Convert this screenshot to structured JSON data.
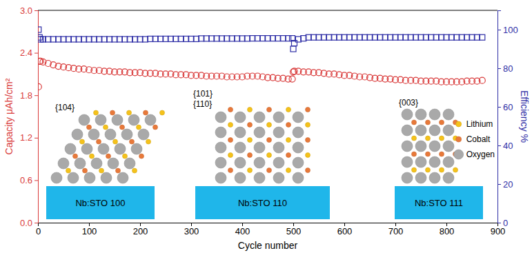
{
  "chart_data": {
    "type": "scatter",
    "xlabel": "Cycle number",
    "ylabel": "Capacity μAh/cm²",
    "y2label": "Efficiency %",
    "xlim": [
      0,
      900
    ],
    "xticks": [
      0,
      100,
      200,
      300,
      400,
      500,
      600,
      700,
      800,
      900
    ],
    "ylim": [
      0,
      3
    ],
    "yticks": [
      {
        "value": 0,
        "label": "0.0"
      },
      0.6,
      1.2,
      1.8,
      2.4,
      {
        "value": 3,
        "label": "3.0"
      }
    ],
    "y2lim": [
      0,
      110
    ],
    "y2ticks": [
      0,
      20,
      40,
      60,
      80,
      100
    ],
    "grid": false,
    "x": [
      1,
      3,
      5,
      10,
      20,
      30,
      40,
      50,
      60,
      70,
      80,
      90,
      100,
      110,
      120,
      130,
      140,
      150,
      160,
      170,
      180,
      190,
      200,
      210,
      220,
      230,
      240,
      250,
      260,
      270,
      280,
      290,
      300,
      310,
      320,
      330,
      340,
      350,
      360,
      370,
      380,
      390,
      400,
      410,
      420,
      430,
      440,
      450,
      460,
      470,
      480,
      490,
      498,
      500,
      502,
      510,
      520,
      530,
      540,
      550,
      560,
      570,
      580,
      590,
      600,
      610,
      620,
      630,
      640,
      650,
      660,
      670,
      680,
      690,
      700,
      710,
      720,
      730,
      740,
      750,
      760,
      770,
      780,
      790,
      800,
      810,
      820,
      830,
      840,
      850,
      860,
      870
    ],
    "series": [
      {
        "color": "#d93a3a",
        "marker": "circle",
        "axis": "y",
        "values": [
          1.92,
          2.28,
          2.28,
          2.27,
          2.25,
          2.23,
          2.21,
          2.2,
          2.19,
          2.18,
          2.17,
          2.17,
          2.16,
          2.15,
          2.15,
          2.14,
          2.14,
          2.13,
          2.13,
          2.13,
          2.12,
          2.12,
          2.12,
          2.11,
          2.11,
          2.11,
          2.1,
          2.1,
          2.1,
          2.09,
          2.09,
          2.09,
          2.08,
          2.08,
          2.08,
          2.07,
          2.07,
          2.07,
          2.07,
          2.06,
          2.06,
          2.06,
          2.06,
          2.07,
          2.07,
          2.07,
          2.06,
          2.05,
          2.05,
          2.04,
          2.04,
          2.03,
          2.03,
          2.13,
          2.14,
          2.14,
          2.13,
          2.13,
          2.12,
          2.12,
          2.11,
          2.1,
          2.1,
          2.09,
          2.08,
          2.08,
          2.07,
          2.06,
          2.06,
          2.05,
          2.04,
          2.04,
          2.03,
          2.03,
          2.02,
          2.02,
          2.01,
          2.01,
          2.01,
          2.0,
          2.0,
          2.0,
          2.0,
          1.99,
          1.99,
          1.99,
          1.99,
          1.99,
          2.0,
          2.0,
          2.0,
          2.01
        ]
      },
      {
        "color": "#2e2ea6",
        "marker": "square",
        "axis": "y2",
        "values": [
          100,
          96,
          95,
          95,
          95,
          95,
          95,
          95,
          95,
          95,
          95,
          95,
          95,
          95,
          95,
          95,
          95,
          95,
          95,
          95,
          95,
          95,
          95,
          95,
          95.2,
          95.2,
          95.2,
          95.2,
          95.2,
          95.2,
          95.2,
          95.2,
          95.2,
          95.2,
          95.4,
          95.4,
          95.4,
          95.4,
          95.4,
          95.4,
          95.4,
          95.4,
          95.4,
          95.4,
          95.5,
          95.5,
          95.5,
          95.5,
          95.5,
          95.5,
          95.5,
          95.5,
          95.5,
          90,
          93,
          95,
          95.5,
          96,
          96,
          96,
          96,
          96,
          96,
          96,
          96,
          96,
          96,
          96,
          96,
          96,
          96,
          96,
          96,
          96,
          96,
          96,
          96,
          96,
          96,
          96,
          96,
          96,
          96,
          96,
          96,
          96,
          96,
          96,
          96,
          96,
          96,
          96
        ]
      }
    ],
    "insets": [
      {
        "facets": [
          "{104}"
        ],
        "substrate": "Nb:STO 100"
      },
      {
        "facets": [
          "{101}",
          "{110}"
        ],
        "substrate": "Nb:STO 110"
      },
      {
        "facets": [
          "{003}"
        ],
        "substrate": "Nb:STO 111"
      }
    ],
    "atoms": [
      {
        "name": "Lithium",
        "color": "#f5c21b"
      },
      {
        "name": "Cobalt",
        "color": "#e8793a"
      },
      {
        "name": "Oxygen",
        "color": "#a9a9a9"
      }
    ]
  }
}
